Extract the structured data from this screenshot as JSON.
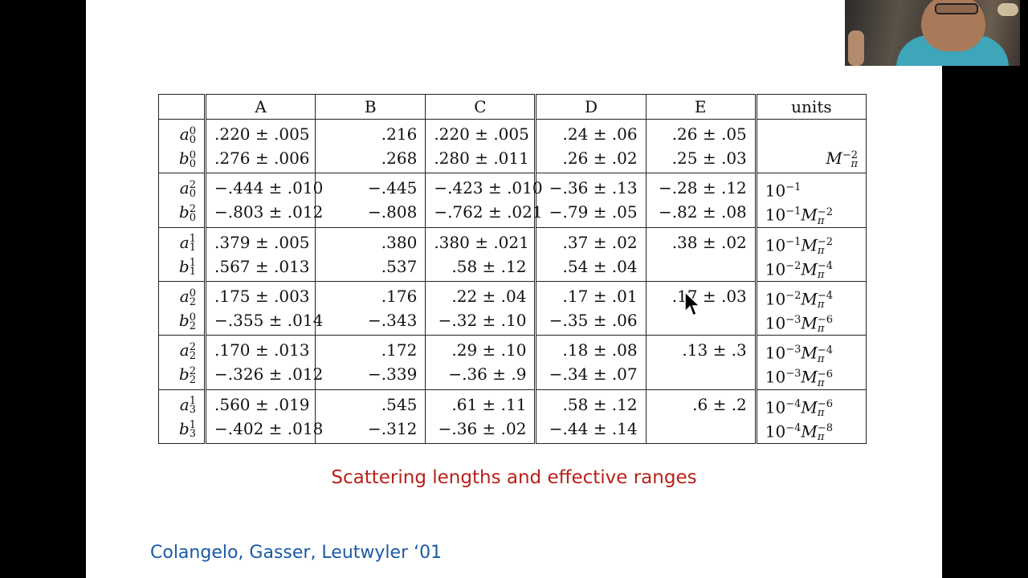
{
  "table": {
    "headers": [
      "A",
      "B",
      "C",
      "D",
      "E",
      "units"
    ],
    "rows": [
      {
        "syms": [
          {
            "b": "a",
            "sup": "0",
            "sub": "0"
          },
          {
            "b": "b",
            "sup": "0",
            "sub": "0"
          }
        ],
        "cols": [
          [
            ".220 ± .005",
            ".276 ± .006"
          ],
          [
            ".216",
            ".268"
          ],
          [
            ".220 ± .005",
            ".280 ± .011"
          ],
          [
            ".24 ± .06",
            ".26 ± .02"
          ],
          [
            ".26 ± .05",
            ".25 ± .03"
          ]
        ],
        "units": [
          "",
          "M_π^−2"
        ]
      },
      {
        "syms": [
          {
            "b": "a",
            "sup": "2",
            "sub": "0"
          },
          {
            "b": "b",
            "sup": "2",
            "sub": "0"
          }
        ],
        "cols": [
          [
            "−.444 ± .010",
            "−.803 ± .012"
          ],
          [
            "−.445",
            "−.808"
          ],
          [
            "−.423 ± .010",
            "−.762 ± .021"
          ],
          [
            "−.36 ± .13",
            "−.79 ± .05"
          ],
          [
            "−.28 ± .12",
            "−.82 ± .08"
          ]
        ],
        "units": [
          "10^−1",
          "10^−1 M_π^−2"
        ]
      },
      {
        "syms": [
          {
            "b": "a",
            "sup": "1",
            "sub": "1"
          },
          {
            "b": "b",
            "sup": "1",
            "sub": "1"
          }
        ],
        "cols": [
          [
            ".379 ± .005",
            ".567 ± .013"
          ],
          [
            ".380",
            ".537"
          ],
          [
            ".380 ± .021",
            ".58 ± .12"
          ],
          [
            ".37 ± .02",
            ".54 ± .04"
          ],
          [
            ".38 ± .02",
            ""
          ]
        ],
        "units": [
          "10^−1 M_π^−2",
          "10^−2 M_π^−4"
        ]
      },
      {
        "syms": [
          {
            "b": "a",
            "sup": "0",
            "sub": "2"
          },
          {
            "b": "b",
            "sup": "0",
            "sub": "2"
          }
        ],
        "cols": [
          [
            ".175 ± .003",
            "−.355 ± .014"
          ],
          [
            ".176",
            "−.343"
          ],
          [
            ".22 ± .04",
            "−.32 ± .10"
          ],
          [
            ".17 ± .01",
            "−.35 ± .06"
          ],
          [
            ".17 ± .03",
            ""
          ]
        ],
        "units": [
          "10^−2 M_π^−4",
          "10^−3 M_π^−6"
        ]
      },
      {
        "syms": [
          {
            "b": "a",
            "sup": "2",
            "sub": "2"
          },
          {
            "b": "b",
            "sup": "2",
            "sub": "2"
          }
        ],
        "cols": [
          [
            ".170 ± .013",
            "−.326 ± .012"
          ],
          [
            ".172",
            "−.339"
          ],
          [
            ".29 ± .10",
            "−.36 ± .9"
          ],
          [
            ".18 ± .08",
            "−.34 ± .07"
          ],
          [
            ".13 ± .3",
            ""
          ]
        ],
        "units": [
          "10^−3 M_π^−4",
          "10^−3 M_π^−6"
        ]
      },
      {
        "syms": [
          {
            "b": "a",
            "sup": "1",
            "sub": "3"
          },
          {
            "b": "b",
            "sup": "1",
            "sub": "3"
          }
        ],
        "cols": [
          [
            ".560 ± .019",
            "−.402 ± .018"
          ],
          [
            ".545",
            "−.312"
          ],
          [
            ".61 ± .11",
            "−.36 ± .02"
          ],
          [
            ".58 ± .12",
            "−.44 ± .14"
          ],
          [
            ".6 ± .2",
            ""
          ]
        ],
        "units": [
          "10^−4 M_π^−6",
          "10^−4 M_π^−8"
        ]
      }
    ]
  },
  "caption": "Scattering lengths and effective ranges",
  "citation": "Colangelo, Gasser, Leutwyler ‘01",
  "colors": {
    "caption": "#b8201a",
    "citation": "#1a5aa6",
    "background": "#000000",
    "slide": "#ffffff"
  },
  "icons": {
    "cursor": "mouse-pointer-icon"
  }
}
